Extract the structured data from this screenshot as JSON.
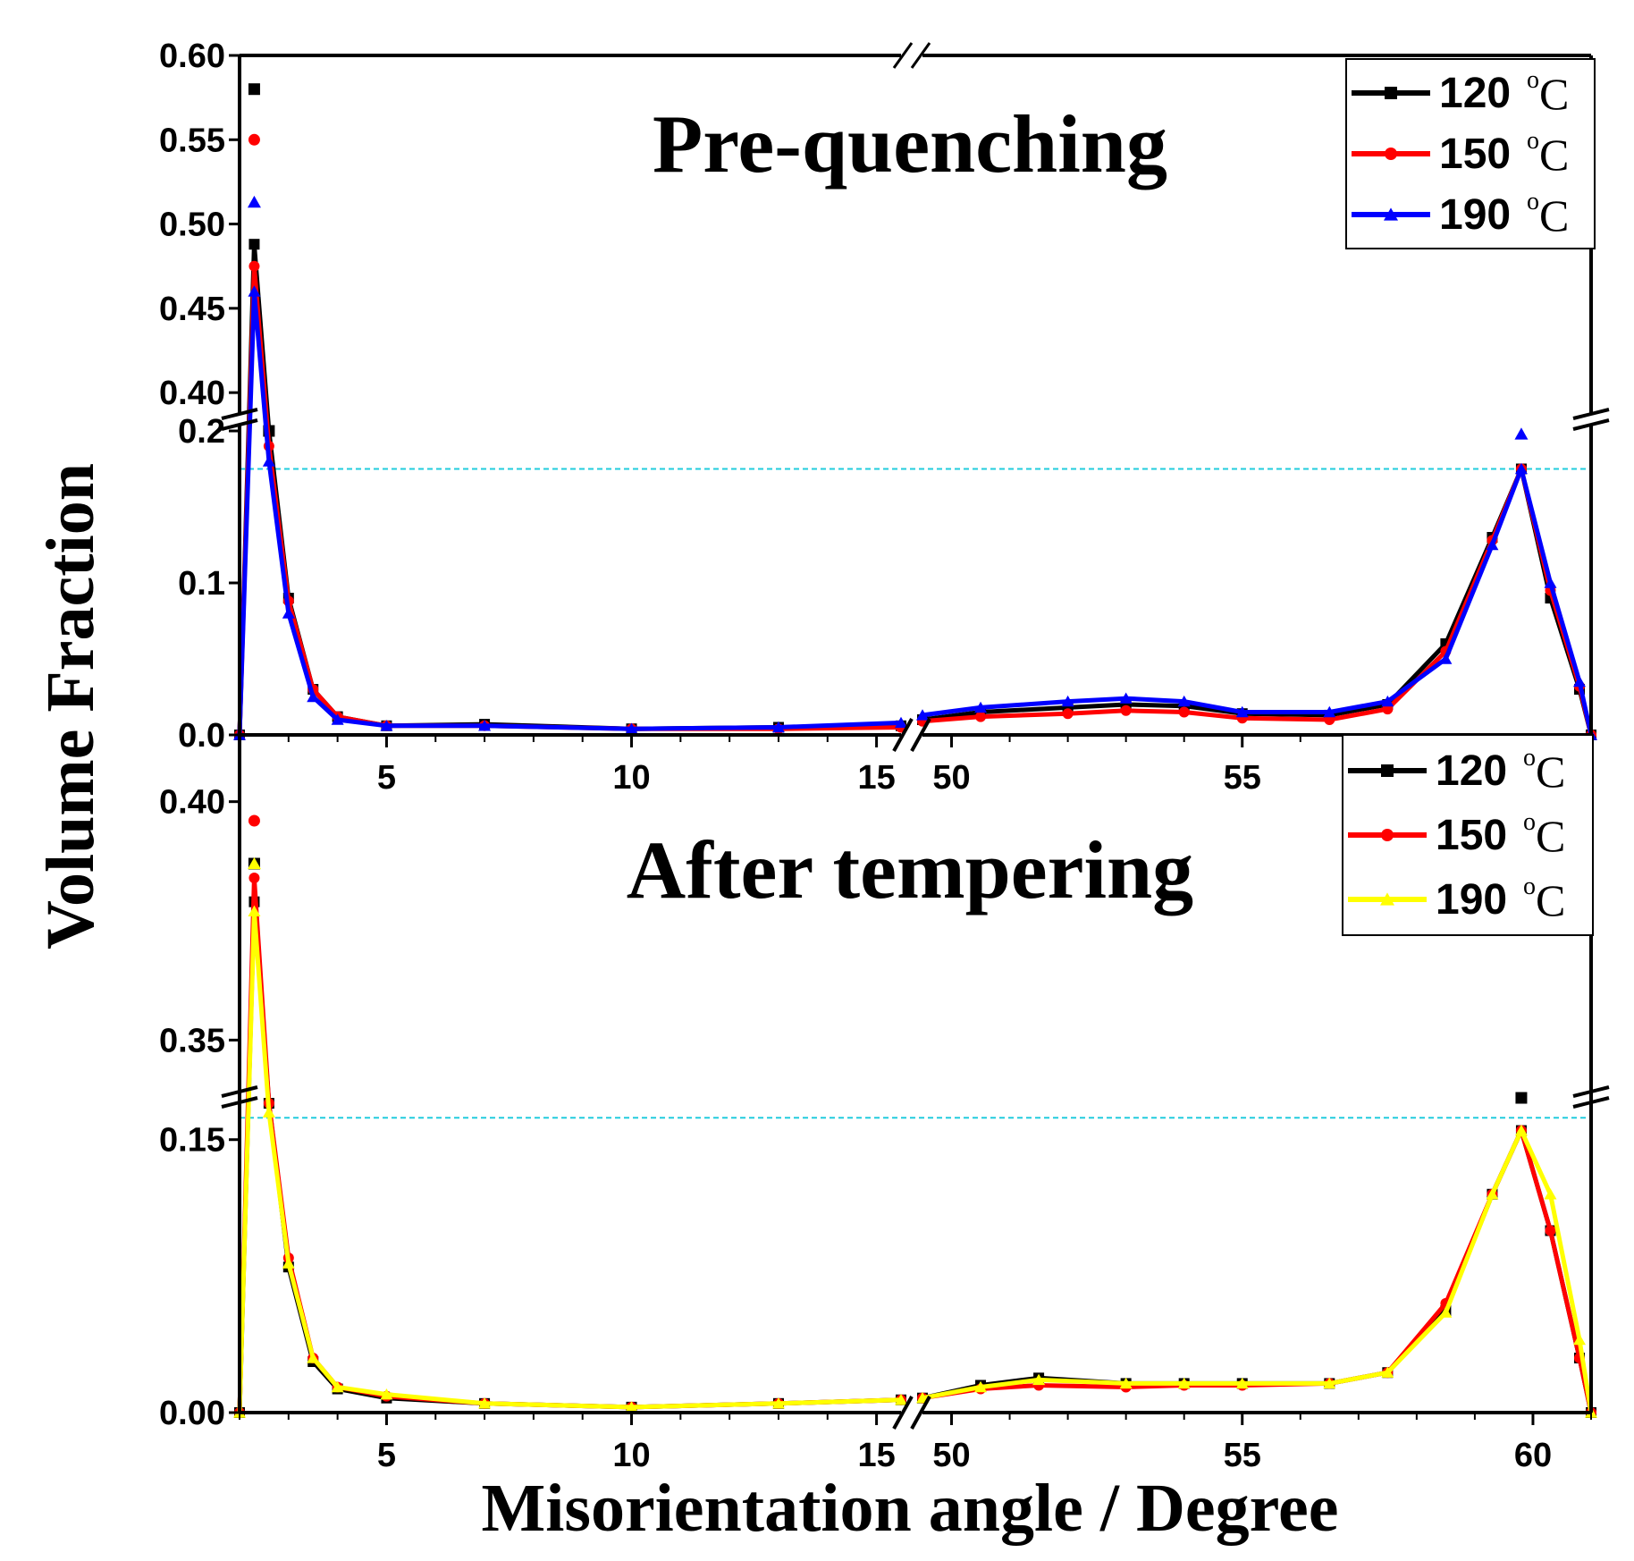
{
  "chart_data": [
    {
      "type": "line",
      "title": "Pre-quenching",
      "xlabel": "Misorientation angle / Degree",
      "ylabel": "Volume Fraction",
      "x_segments": [
        {
          "range": [
            2,
            15.5
          ],
          "ticks": [
            5,
            10,
            15
          ],
          "tick_labels": [
            "5",
            "10",
            "15"
          ]
        },
        {
          "range": [
            49.5,
            61
          ],
          "ticks": [
            50,
            55
          ],
          "tick_labels": [
            "50",
            "55"
          ]
        }
      ],
      "y_segments": [
        {
          "range": [
            0,
            0.2
          ],
          "ticks": [
            0.0,
            0.1,
            0.2
          ],
          "tick_labels": [
            "0.0",
            "0.1",
            "0.2"
          ]
        },
        {
          "range": [
            0.39,
            0.6
          ],
          "ticks": [
            0.4,
            0.45,
            0.5,
            0.55,
            0.6
          ],
          "tick_labels": [
            "0.40",
            "0.45",
            "0.50",
            "0.55",
            "0.60"
          ]
        }
      ],
      "reference_line_y": 0.175,
      "legend_position": "top-right",
      "series": [
        {
          "name": "120",
          "unit": "C",
          "unit_sup": "o",
          "color": "#000000",
          "marker": "square",
          "x": [
            2,
            2.3,
            2.6,
            3,
            3.5,
            4,
            5,
            7,
            10,
            13,
            15.5,
            49.5,
            50.5,
            52,
            53,
            54,
            55,
            56.5,
            57.5,
            58.5,
            59.3,
            59.8,
            60.3,
            60.8,
            61
          ],
          "y": [
            0,
            0.488,
            0.2,
            0.09,
            0.03,
            0.012,
            0.006,
            0.007,
            0.004,
            0.005,
            0.006,
            0.01,
            0.015,
            0.018,
            0.02,
            0.019,
            0.014,
            0.013,
            0.02,
            0.06,
            0.13,
            0.175,
            0.09,
            0.03,
            0
          ],
          "outliers": [
            {
              "x": 2.3,
              "y": 0.58
            },
            {
              "x": 2.6,
              "y": 0.2
            }
          ]
        },
        {
          "name": "150",
          "unit": "C",
          "unit_sup": "o",
          "color": "#ff0000",
          "marker": "circle",
          "x": [
            2,
            2.3,
            2.6,
            3,
            3.5,
            4,
            5,
            7,
            10,
            13,
            15.5,
            49.5,
            50.5,
            52,
            53,
            54,
            55,
            56.5,
            57.5,
            58.5,
            59.3,
            59.8,
            60.3,
            60.8,
            61
          ],
          "y": [
            0,
            0.475,
            0.19,
            0.088,
            0.03,
            0.012,
            0.006,
            0.006,
            0.004,
            0.004,
            0.005,
            0.009,
            0.012,
            0.014,
            0.016,
            0.015,
            0.011,
            0.01,
            0.017,
            0.055,
            0.128,
            0.175,
            0.095,
            0.032,
            0
          ],
          "outliers": [
            {
              "x": 2.3,
              "y": 0.55
            }
          ]
        },
        {
          "name": "190",
          "unit": "C",
          "unit_sup": "o",
          "color": "#0000ff",
          "marker": "triangle",
          "x": [
            2,
            2.3,
            2.6,
            3,
            3.5,
            4,
            5,
            7,
            10,
            13,
            15.5,
            49.5,
            50.5,
            52,
            53,
            54,
            55,
            56.5,
            57.5,
            58.5,
            59.3,
            59.8,
            60.3,
            60.8,
            61
          ],
          "y": [
            0,
            0.46,
            0.18,
            0.08,
            0.025,
            0.01,
            0.006,
            0.006,
            0.004,
            0.005,
            0.008,
            0.013,
            0.018,
            0.022,
            0.024,
            0.022,
            0.015,
            0.015,
            0.022,
            0.05,
            0.125,
            0.175,
            0.1,
            0.035,
            0
          ],
          "outliers": [
            {
              "x": 2.3,
              "y": 0.513
            },
            {
              "x": 59.8,
              "y": 0.198
            }
          ]
        }
      ]
    },
    {
      "type": "line",
      "title": "After tempering",
      "xlabel": "Misorientation angle / Degree",
      "ylabel": "Volume Fraction",
      "x_segments": [
        {
          "range": [
            2,
            15.5
          ],
          "ticks": [
            5,
            10,
            15
          ],
          "tick_labels": [
            "5",
            "10",
            "15"
          ]
        },
        {
          "range": [
            49.5,
            61
          ],
          "ticks": [
            50,
            55,
            60
          ],
          "tick_labels": [
            "50",
            "55",
            "60"
          ]
        }
      ],
      "y_segments": [
        {
          "range": [
            0,
            0.17
          ],
          "ticks": [
            0.0,
            0.15
          ],
          "tick_labels": [
            "0.00",
            "0.15"
          ]
        },
        {
          "range": [
            0.339,
            0.405
          ],
          "ticks": [
            0.35,
            0.4
          ],
          "tick_labels": [
            "0.35",
            "0.40"
          ]
        }
      ],
      "reference_line_y": 0.162,
      "legend_position": "top-right",
      "series": [
        {
          "name": "120",
          "unit": "C",
          "unit_sup": "o",
          "color": "#000000",
          "marker": "square",
          "x": [
            2,
            2.3,
            2.6,
            3,
            3.5,
            4,
            5,
            7,
            10,
            13,
            15.5,
            49.5,
            50.5,
            51.5,
            53,
            54,
            55,
            56.5,
            57.5,
            58.5,
            59.3,
            59.8,
            60.3,
            60.8,
            61
          ],
          "y": [
            0,
            0.379,
            0.17,
            0.08,
            0.028,
            0.013,
            0.008,
            0.005,
            0.003,
            0.005,
            0.007,
            0.008,
            0.015,
            0.019,
            0.016,
            0.016,
            0.016,
            0.016,
            0.022,
            0.056,
            0.12,
            0.155,
            0.1,
            0.03,
            0
          ],
          "outliers": [
            {
              "x": 2.3,
              "y": 0.387
            },
            {
              "x": 59.8,
              "y": 0.176
            }
          ]
        },
        {
          "name": "150",
          "unit": "C",
          "unit_sup": "o",
          "color": "#ff0000",
          "marker": "circle",
          "x": [
            2,
            2.3,
            2.6,
            3,
            3.5,
            4,
            5,
            7,
            10,
            13,
            15.5,
            49.5,
            50.5,
            51.5,
            53,
            54,
            55,
            56.5,
            57.5,
            58.5,
            59.3,
            59.8,
            60.3,
            60.8,
            61
          ],
          "y": [
            0,
            0.384,
            0.17,
            0.085,
            0.03,
            0.014,
            0.009,
            0.005,
            0.003,
            0.005,
            0.007,
            0.008,
            0.013,
            0.015,
            0.014,
            0.015,
            0.015,
            0.016,
            0.022,
            0.06,
            0.12,
            0.155,
            0.1,
            0.03,
            0
          ],
          "outliers": [
            {
              "x": 2.3,
              "y": 0.396
            }
          ]
        },
        {
          "name": "190",
          "unit": "C",
          "unit_sup": "o",
          "color": "#ffff00",
          "marker": "triangle",
          "x": [
            2,
            2.3,
            2.6,
            3,
            3.5,
            4,
            5,
            7,
            10,
            13,
            15.5,
            49.5,
            50.5,
            51.5,
            53,
            54,
            55,
            56.5,
            57.5,
            58.5,
            59.3,
            59.8,
            60.3,
            60.8,
            61
          ],
          "y": [
            0,
            0.377,
            0.165,
            0.082,
            0.03,
            0.014,
            0.01,
            0.005,
            0.003,
            0.005,
            0.007,
            0.008,
            0.014,
            0.018,
            0.016,
            0.016,
            0.016,
            0.016,
            0.022,
            0.055,
            0.12,
            0.155,
            0.12,
            0.04,
            0
          ],
          "outliers": [
            {
              "x": 2.3,
              "y": 0.387
            }
          ]
        }
      ]
    }
  ]
}
